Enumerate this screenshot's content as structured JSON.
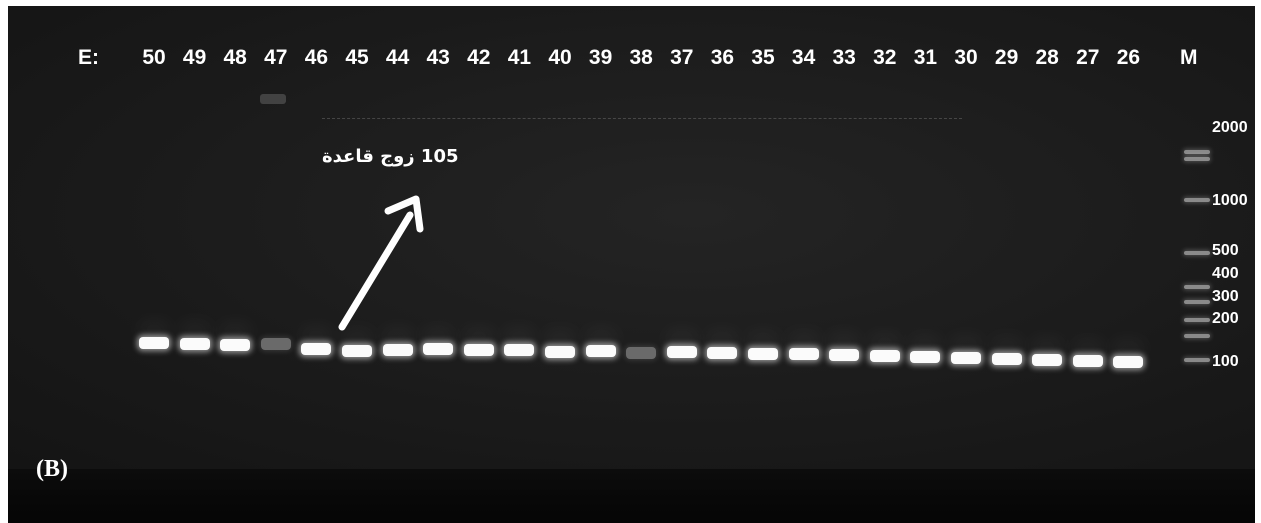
{
  "lane_prefix": "E:",
  "lanes": [
    "50",
    "49",
    "48",
    "47",
    "46",
    "45",
    "44",
    "43",
    "42",
    "41",
    "40",
    "39",
    "38",
    "37",
    "36",
    "35",
    "34",
    "33",
    "32",
    "31",
    "30",
    "29",
    "28",
    "27",
    "26"
  ],
  "marker_lane_label": "M",
  "ladder_labels": [
    "2000",
    "1000",
    "500",
    "400",
    "300",
    "200",
    "100"
  ],
  "annotation_text": "105 زوج قاعدة",
  "panel_label": "(B)",
  "colors": {
    "gel_background": "#1b1b1b",
    "band": "#fbfbfb",
    "text": "#ffffff"
  }
}
